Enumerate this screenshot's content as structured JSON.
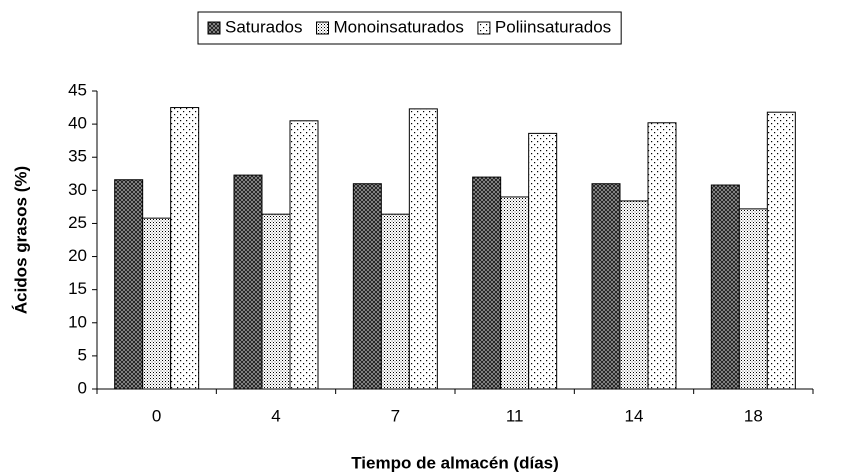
{
  "chart_data": {
    "type": "bar",
    "x_label": "Tiempo de almacén (días)",
    "y_label": "Ácidos grasos (%)",
    "categories": [
      "0",
      "4",
      "7",
      "11",
      "14",
      "18"
    ],
    "series": [
      {
        "name": "Saturados",
        "color": "#000000",
        "pattern": "crosshatch",
        "values": [
          31.6,
          32.3,
          31.0,
          32.0,
          31.0,
          30.8
        ]
      },
      {
        "name": "Monoinsaturados",
        "color": "#000000",
        "pattern": "dense-dots",
        "values": [
          25.8,
          26.4,
          26.4,
          29.0,
          28.4,
          27.2
        ]
      },
      {
        "name": "Poliinsaturados",
        "color": "#000000",
        "pattern": "sparse-dots",
        "values": [
          42.5,
          40.5,
          42.3,
          38.6,
          40.2,
          41.8
        ]
      }
    ],
    "ylim": [
      0,
      45
    ],
    "yticks": [
      0,
      5,
      10,
      15,
      20,
      25,
      30,
      35,
      40,
      45
    ],
    "grid": false,
    "legend": "top"
  }
}
